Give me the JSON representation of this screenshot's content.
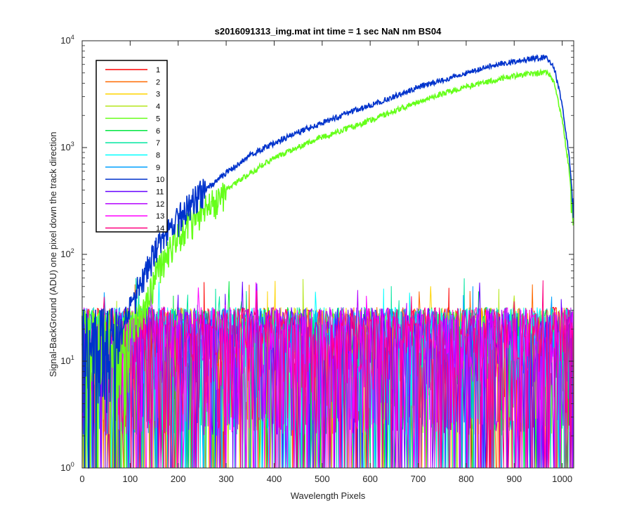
{
  "chart_data": {
    "type": "line",
    "title": "s2016091313_img.mat int time = 1 sec  NaN nm BS04",
    "xlabel": "Wavelength Pixels",
    "ylabel": "Signal-BackGround (ADU) one pixel down the track direction",
    "xlim": [
      0,
      1024
    ],
    "ylim": [
      1,
      10000
    ],
    "yscale": "log",
    "grid": false,
    "legend_position": "top-left",
    "x_ticks": [
      "0",
      "100",
      "200",
      "300",
      "400",
      "500",
      "600",
      "700",
      "800",
      "900",
      "1000"
    ],
    "y_ticks": [
      {
        "base": "10",
        "exp": "0"
      },
      {
        "base": "10",
        "exp": "1"
      },
      {
        "base": "10",
        "exp": "2"
      },
      {
        "base": "10",
        "exp": "3"
      },
      {
        "base": "10",
        "exp": "4"
      }
    ],
    "series": [
      {
        "name": "1",
        "color": "#ff0000",
        "kind": "noise"
      },
      {
        "name": "2",
        "color": "#ff6a00",
        "kind": "noise"
      },
      {
        "name": "3",
        "color": "#ffd400",
        "kind": "noise"
      },
      {
        "name": "4",
        "color": "#b5e61d",
        "kind": "noise"
      },
      {
        "name": "5",
        "color": "#66ff1a",
        "kind": "signal",
        "x": [
          100,
          130,
          150,
          175,
          200,
          225,
          250,
          300,
          350,
          400,
          450,
          500,
          550,
          600,
          650,
          700,
          750,
          800,
          850,
          900,
          950,
          965,
          975,
          985,
          1000,
          1015,
          1024
        ],
        "y": [
          20,
          30,
          60,
          100,
          150,
          200,
          250,
          400,
          580,
          800,
          1000,
          1250,
          1500,
          1800,
          2200,
          2700,
          3200,
          3700,
          4200,
          4700,
          5000,
          5100,
          4800,
          3800,
          1800,
          600,
          180
        ]
      },
      {
        "name": "6",
        "color": "#00e640",
        "kind": "noise"
      },
      {
        "name": "7",
        "color": "#00e6a0",
        "kind": "noise"
      },
      {
        "name": "8",
        "color": "#00ffff",
        "kind": "noise"
      },
      {
        "name": "9",
        "color": "#00a0ff",
        "kind": "noise"
      },
      {
        "name": "10",
        "color": "#0033cc",
        "kind": "signal",
        "x": [
          80,
          100,
          125,
          150,
          175,
          200,
          225,
          250,
          300,
          350,
          400,
          450,
          500,
          550,
          600,
          650,
          700,
          750,
          800,
          850,
          900,
          950,
          965,
          975,
          985,
          1000,
          1015,
          1024
        ],
        "y": [
          20,
          30,
          60,
          100,
          170,
          220,
          290,
          380,
          580,
          850,
          1100,
          1400,
          1700,
          2100,
          2500,
          3000,
          3700,
          4300,
          5000,
          5800,
          6400,
          6900,
          7000,
          6500,
          5200,
          2500,
          800,
          250
        ]
      },
      {
        "name": "11",
        "color": "#6600ff",
        "kind": "noise"
      },
      {
        "name": "12",
        "color": "#b300ff",
        "kind": "noise"
      },
      {
        "name": "13",
        "color": "#ff00ff",
        "kind": "noise"
      },
      {
        "name": "14",
        "color": "#ff0080",
        "kind": "noise"
      }
    ],
    "noise_band": {
      "min": 1,
      "typical_max": 32,
      "peak_max": 60
    }
  }
}
